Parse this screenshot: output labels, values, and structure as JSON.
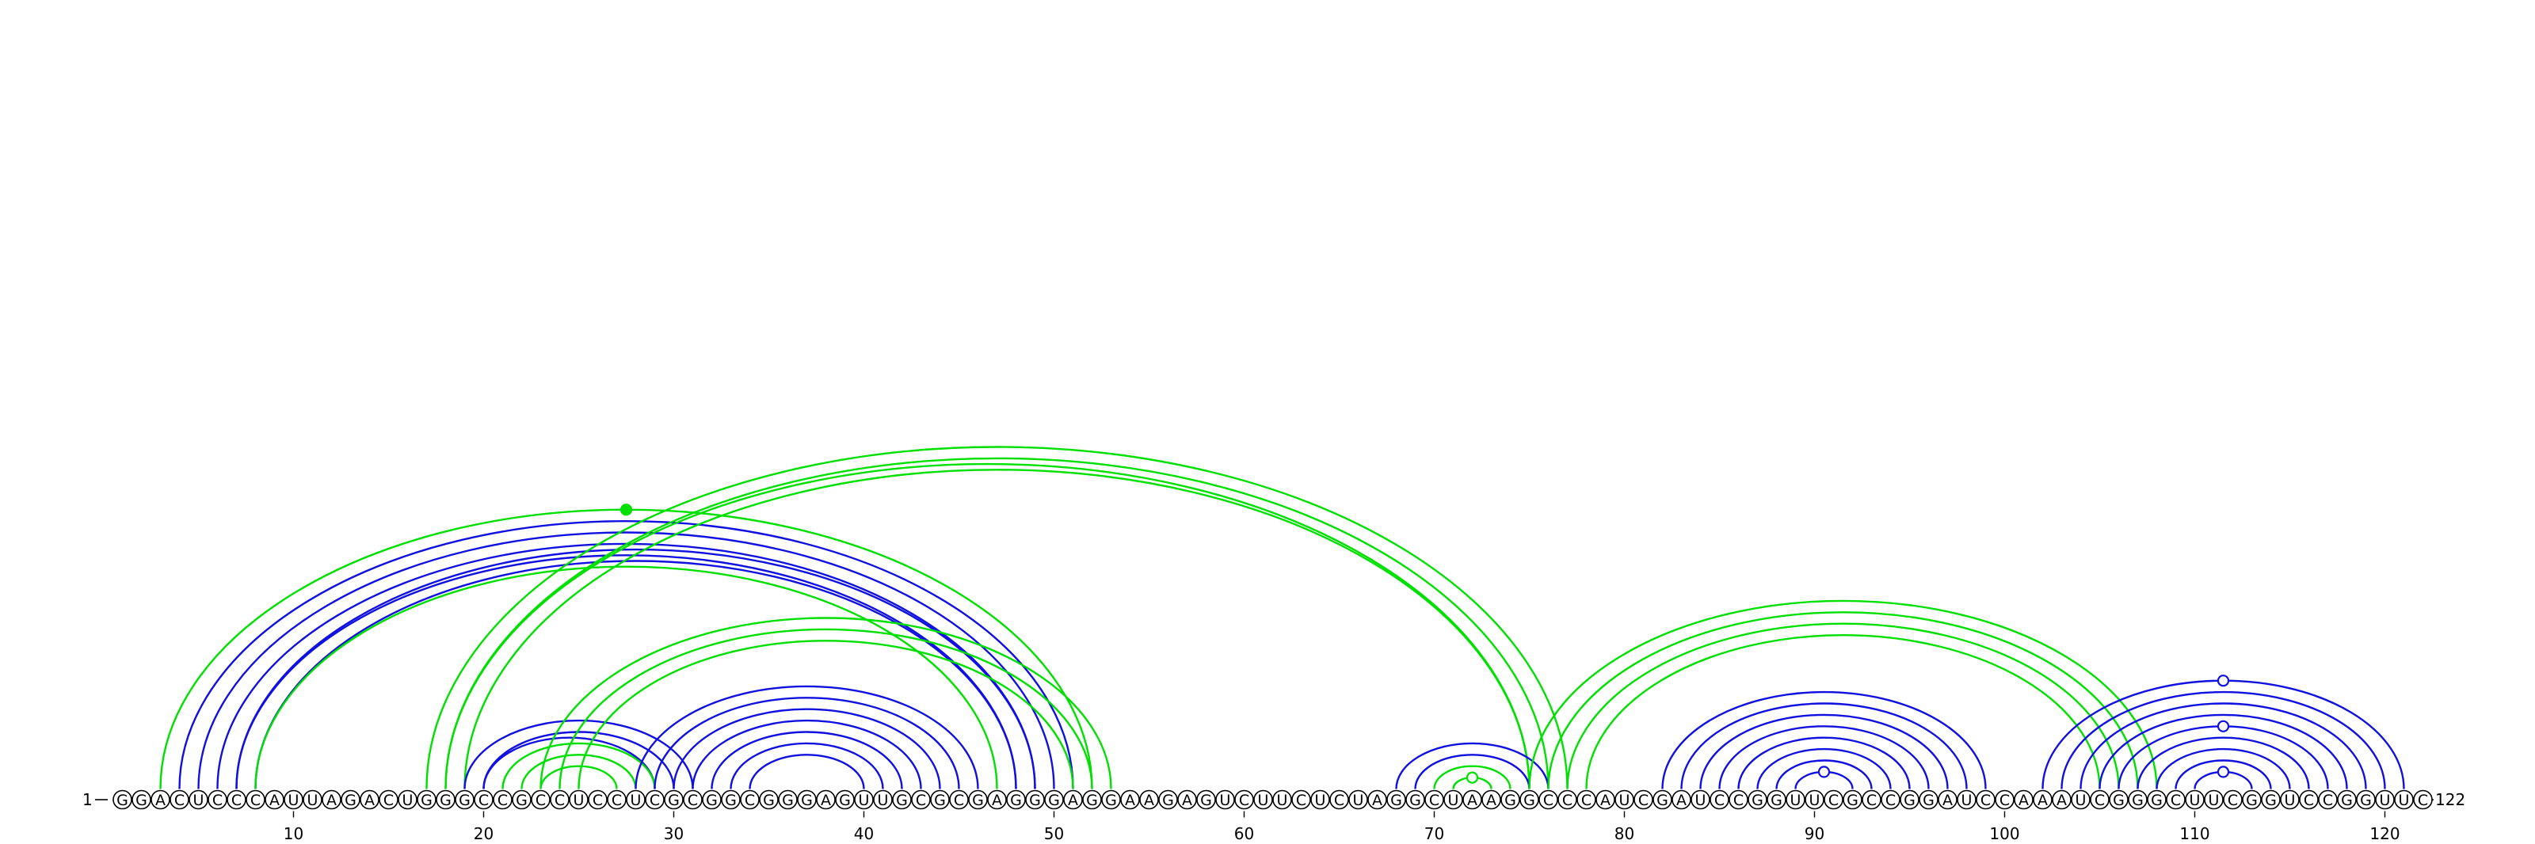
{
  "sequence": "GGACUCCCAUUAGACUGGGCCGCCUCCUCGCGGCGGGAGUUGCGCGAGGGAGGAAGAGUCUUCUCUAGGCUAAGGCCCAUCGAUCCGGUUCGCCGGAUCCAAAUCGGGCUUCGGUCCGGUUC",
  "start_label": "1",
  "end_label": "122",
  "tick_labels": [
    "10",
    "20",
    "30",
    "40",
    "50",
    "60",
    "70",
    "80",
    "90",
    "100",
    "110",
    "120"
  ],
  "colors": {
    "blue": "#1010e0",
    "green": "#00e000",
    "text": "#000000"
  },
  "arcs": [
    {
      "i": 3,
      "j": 52,
      "color": "green"
    },
    {
      "i": 4,
      "j": 51,
      "color": "blue"
    },
    {
      "i": 5,
      "j": 50,
      "color": "blue"
    },
    {
      "i": 6,
      "j": 49,
      "color": "blue"
    },
    {
      "i": 7,
      "j": 49,
      "color": "blue"
    },
    {
      "i": 7,
      "j": 48,
      "color": "blue"
    },
    {
      "i": 8,
      "j": 48,
      "color": "blue"
    },
    {
      "i": 8,
      "j": 47,
      "color": "green"
    },
    {
      "i": 17,
      "j": 77,
      "color": "green"
    },
    {
      "i": 18,
      "j": 76,
      "color": "green"
    },
    {
      "i": 18,
      "j": 75,
      "color": "green"
    },
    {
      "i": 19,
      "j": 75,
      "color": "green"
    },
    {
      "i": 19,
      "j": 31,
      "color": "blue"
    },
    {
      "i": 20,
      "j": 30,
      "color": "blue"
    },
    {
      "i": 20,
      "j": 29,
      "color": "blue"
    },
    {
      "i": 21,
      "j": 29,
      "color": "green"
    },
    {
      "i": 22,
      "j": 28,
      "color": "green"
    },
    {
      "i": 23,
      "j": 27,
      "color": "green"
    },
    {
      "i": 23,
      "j": 53,
      "color": "green"
    },
    {
      "i": 24,
      "j": 52,
      "color": "green"
    },
    {
      "i": 25,
      "j": 51,
      "color": "green"
    },
    {
      "i": 28,
      "j": 46,
      "color": "blue"
    },
    {
      "i": 29,
      "j": 45,
      "color": "blue"
    },
    {
      "i": 30,
      "j": 44,
      "color": "blue"
    },
    {
      "i": 31,
      "j": 43,
      "color": "blue"
    },
    {
      "i": 32,
      "j": 42,
      "color": "blue"
    },
    {
      "i": 33,
      "j": 41,
      "color": "blue"
    },
    {
      "i": 34,
      "j": 40,
      "color": "blue"
    },
    {
      "i": 68,
      "j": 76,
      "color": "blue"
    },
    {
      "i": 69,
      "j": 75,
      "color": "blue"
    },
    {
      "i": 70,
      "j": 74,
      "color": "green"
    },
    {
      "i": 71,
      "j": 73,
      "color": "green"
    },
    {
      "i": 75,
      "j": 108,
      "color": "green"
    },
    {
      "i": 76,
      "j": 107,
      "color": "green"
    },
    {
      "i": 77,
      "j": 106,
      "color": "green"
    },
    {
      "i": 78,
      "j": 105,
      "color": "green"
    },
    {
      "i": 82,
      "j": 99,
      "color": "blue"
    },
    {
      "i": 83,
      "j": 98,
      "color": "blue"
    },
    {
      "i": 84,
      "j": 97,
      "color": "blue"
    },
    {
      "i": 85,
      "j": 96,
      "color": "blue"
    },
    {
      "i": 86,
      "j": 95,
      "color": "blue"
    },
    {
      "i": 87,
      "j": 94,
      "color": "blue"
    },
    {
      "i": 88,
      "j": 93,
      "color": "blue"
    },
    {
      "i": 89,
      "j": 92,
      "color": "blue"
    },
    {
      "i": 102,
      "j": 121,
      "color": "blue"
    },
    {
      "i": 103,
      "j": 120,
      "color": "blue"
    },
    {
      "i": 104,
      "j": 119,
      "color": "blue"
    },
    {
      "i": 105,
      "j": 118,
      "color": "blue"
    },
    {
      "i": 106,
      "j": 117,
      "color": "blue"
    },
    {
      "i": 107,
      "j": 116,
      "color": "blue"
    },
    {
      "i": 108,
      "j": 115,
      "color": "blue"
    },
    {
      "i": 109,
      "j": 114,
      "color": "blue"
    },
    {
      "i": 110,
      "j": 113,
      "color": "blue"
    }
  ],
  "markers": [
    {
      "arc": 0,
      "color": "green",
      "filled": true
    },
    {
      "arc": 31,
      "color": "green",
      "filled": false
    },
    {
      "arc": 43,
      "color": "blue",
      "filled": false
    },
    {
      "arc": 44,
      "color": "blue",
      "filled": false
    },
    {
      "arc": 48,
      "color": "blue",
      "filled": false
    },
    {
      "arc": 52,
      "color": "blue",
      "filled": false
    }
  ]
}
